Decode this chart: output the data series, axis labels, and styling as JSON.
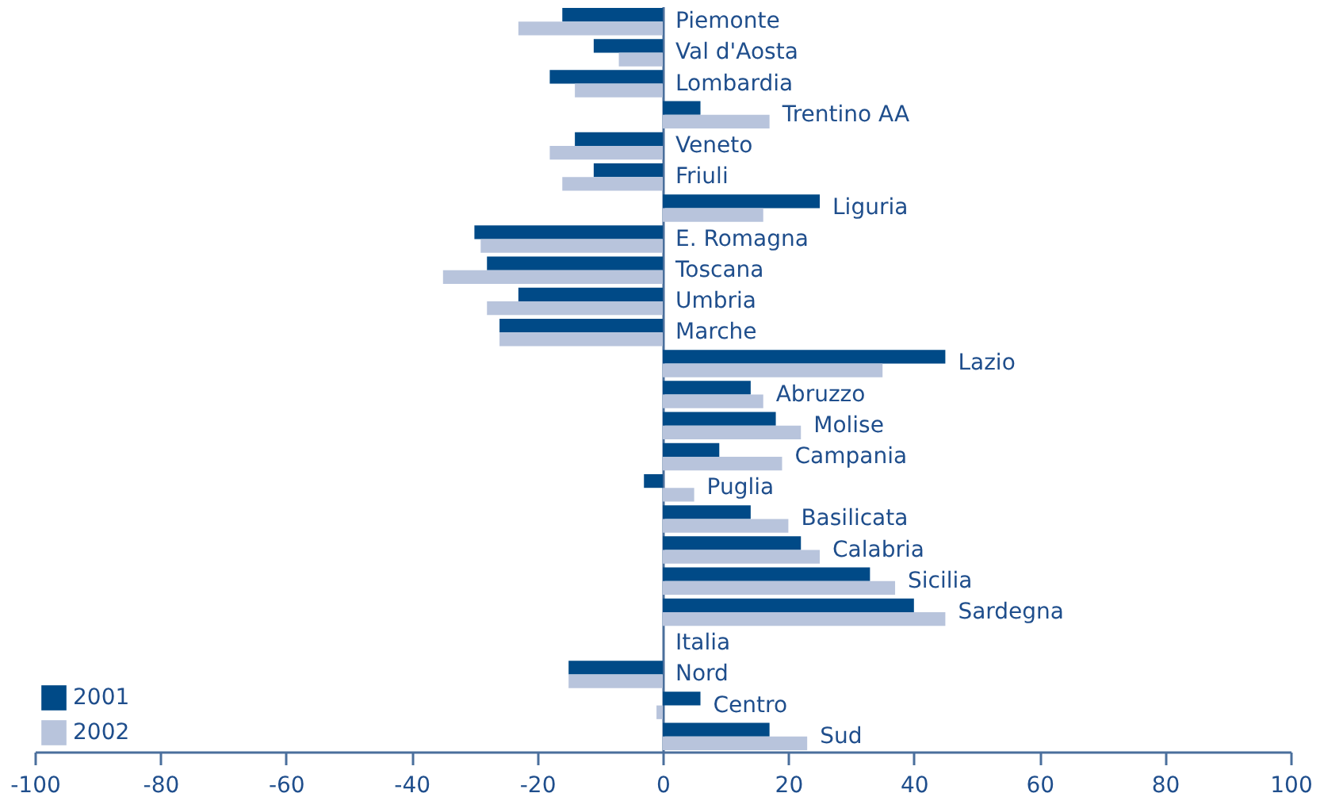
{
  "chart_data": {
    "type": "bar",
    "orientation": "horizontal",
    "categories": [
      "Piemonte",
      "Val d'Aosta",
      "Lombardia",
      "Trentino AA",
      "Veneto",
      "Friuli",
      "Liguria",
      "E. Romagna",
      "Toscana",
      "Umbria",
      "Marche",
      "Lazio",
      "Abruzzo",
      "Molise",
      "Campania",
      "Puglia",
      "Basilicata",
      "Calabria",
      "Sicilia",
      "Sardegna",
      "Italia",
      "Nord",
      "Centro",
      "Sud"
    ],
    "series": [
      {
        "name": "2001",
        "color": "#004a87",
        "values": [
          -16,
          -11,
          -18,
          6,
          -14,
          -11,
          25,
          -30,
          -28,
          -23,
          -26,
          45,
          14,
          18,
          9,
          -3,
          14,
          22,
          33,
          40,
          0,
          -15,
          6,
          17
        ]
      },
      {
        "name": "2002",
        "color": "#b8c4dc",
        "values": [
          -23,
          -7,
          -14,
          17,
          -18,
          -16,
          16,
          -29,
          -35,
          -28,
          -26,
          35,
          16,
          22,
          19,
          5,
          20,
          25,
          37,
          45,
          0,
          -15,
          -1,
          23
        ]
      }
    ],
    "xlim": [
      -100,
      100
    ],
    "xticks": [
      -100,
      -80,
      -60,
      -40,
      -20,
      0,
      20,
      40,
      60,
      80,
      100
    ],
    "legend": "bottom left",
    "grid": false
  }
}
